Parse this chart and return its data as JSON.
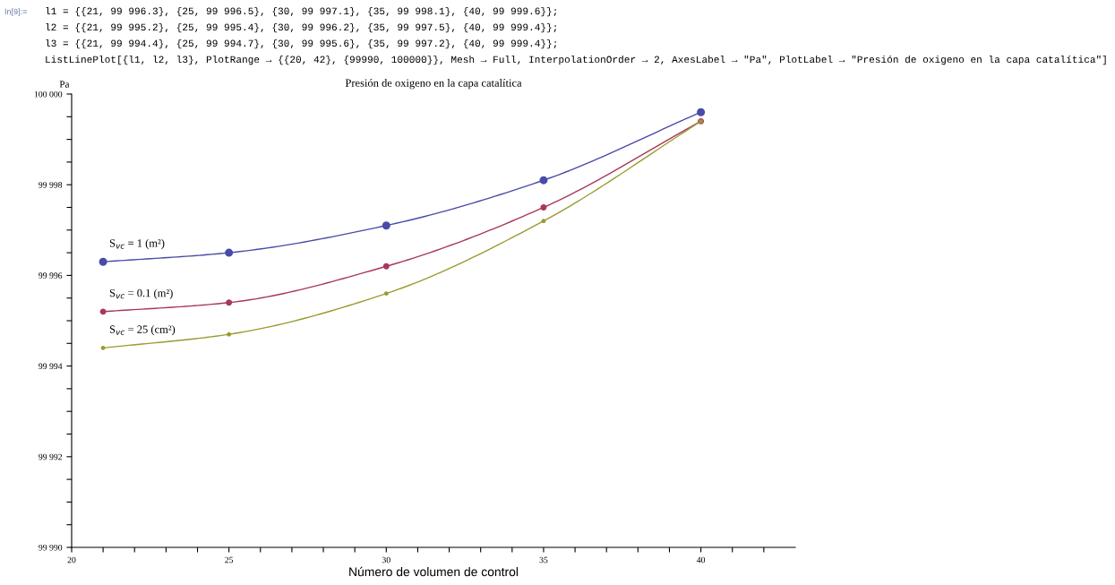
{
  "chart_data": {
    "type": "line",
    "title": "Presión de oxigeno en la capa catalítica",
    "xlabel": "Número de volumen de control",
    "ylabel": "Pa",
    "annotations": [
      "In[9]:=",
      "l1 = {{21, 99 996.3}, {25, 99 996.5}, {30, 99 997.1}, {35, 99 998.1}, {40, 99 999.6}};",
      "l2 = {{21, 99 995.2}, {25, 99 995.4}, {30, 99 996.2}, {35, 99 997.5}, {40, 99 999.4}};",
      "l3 = {{21, 99 994.4}, {25, 99 994.7}, {30, 99 995.6}, {35, 99 997.2}, {40, 99 999.4}};",
      "ListLinePlot[{l1, l2, l3}, PlotRange → {{20, 42}, {99990, 100000}}, Mesh → Full, InterpolationOrder → 2, AxesLabel → \"Pa\", PlotLabel → \"Presión de oxigeno en la capa catalítica\"]"
    ],
    "x": [
      21,
      25,
      30,
      35,
      40
    ],
    "series": [
      {
        "name": "S$_{vc}$ = 1 (m²)",
        "color": "#4a4aa8",
        "values": [
          99996.3,
          99996.5,
          99997.1,
          99998.1,
          99999.6
        ]
      },
      {
        "name": "S$_{vc}$ = 0.1 (m²)",
        "color": "#a8385a",
        "values": [
          99995.2,
          99995.4,
          99996.2,
          99997.5,
          99999.4
        ]
      },
      {
        "name": "S$_{vc}$ = 25 (cm²)",
        "color": "#9a9a30",
        "values": [
          99994.4,
          99994.7,
          99995.6,
          99997.2,
          99999.4
        ]
      }
    ],
    "xlim": [
      20,
      43
    ],
    "ylim": [
      99990,
      100000
    ],
    "xticks": [
      20,
      {
        "value": 21,
        "label": null
      },
      {
        "value": 22,
        "label": null
      },
      {
        "value": 23,
        "label": null
      },
      {
        "value": 24,
        "label": null
      },
      25,
      {
        "value": 26,
        "label": null
      },
      {
        "value": 27,
        "label": null
      },
      {
        "value": 28,
        "label": null
      },
      {
        "value": 29,
        "label": null
      },
      30,
      {
        "value": 31,
        "label": null
      },
      {
        "value": 32,
        "label": null
      },
      {
        "value": 33,
        "label": null
      },
      {
        "value": 34,
        "label": null
      },
      35,
      {
        "value": 36,
        "label": null
      },
      {
        "value": 37,
        "label": null
      },
      {
        "value": 38,
        "label": null
      },
      {
        "value": 39,
        "label": null
      },
      40,
      {
        "value": 41,
        "label": null
      },
      {
        "value": 42,
        "label": null
      }
    ],
    "yticks": [
      {
        "value": 99990,
        "label": "99 990"
      },
      {
        "value": 99990.5,
        "label": null
      },
      {
        "value": 99991,
        "label": null
      },
      {
        "value": 99991.5,
        "label": null
      },
      {
        "value": 99992,
        "label": "99 992"
      },
      {
        "value": 99992.5,
        "label": null
      },
      {
        "value": 99993,
        "label": null
      },
      {
        "value": 99993.5,
        "label": null
      },
      {
        "value": 99994,
        "label": "99 994"
      },
      {
        "value": 99994.5,
        "label": null
      },
      {
        "value": 99995,
        "label": null
      },
      {
        "value": 99995.5,
        "label": null
      },
      {
        "value": 99996,
        "label": "99 996"
      },
      {
        "value": 99996.5,
        "label": null
      },
      {
        "value": 99997,
        "label": null
      },
      {
        "value": 99997.5,
        "label": null
      },
      {
        "value": 99998,
        "label": "99 998"
      },
      {
        "value": 99998.5,
        "label": null
      },
      {
        "value": 99999,
        "label": null
      },
      {
        "value": 99999.5,
        "label": null
      },
      {
        "value": 100000,
        "label": "100 000"
      }
    ],
    "grid": false,
    "legend": false,
    "marker": "circle",
    "line_style": "solid"
  }
}
